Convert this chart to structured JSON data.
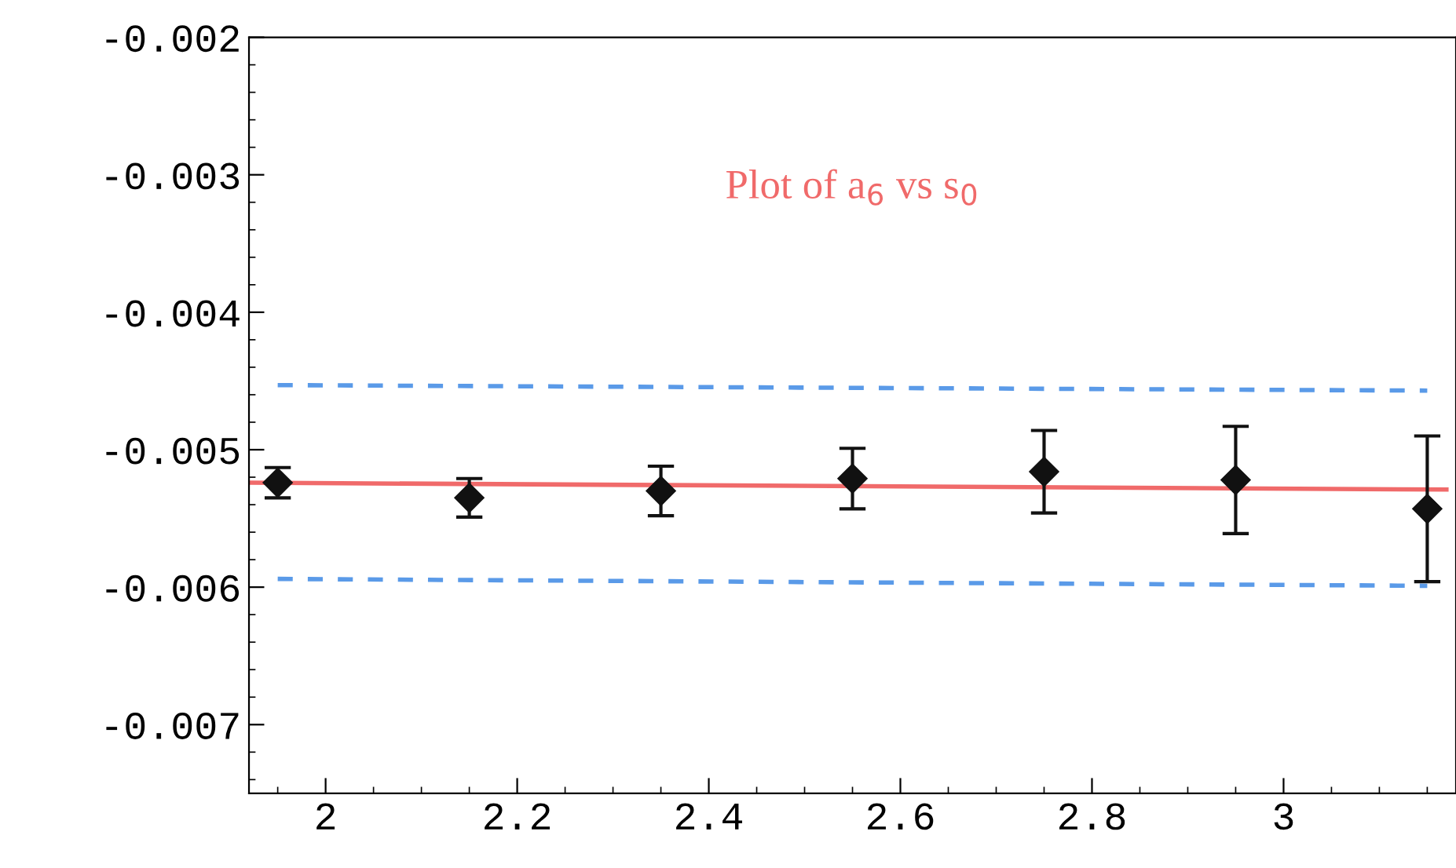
{
  "chart_data": {
    "type": "scatter",
    "title": "Plot of a$_{6}$ vs s$_{0}$",
    "xlim": [
      1.92,
      3.18
    ],
    "xticks": [
      2,
      2.2,
      2.4,
      2.6,
      2.8,
      3
    ],
    "ylim": [
      -0.0075,
      -0.002
    ],
    "yticks": [
      -0.007,
      -0.006,
      -0.005,
      -0.004,
      -0.003,
      -0.002
    ],
    "grid": false,
    "series": [
      {
        "color": "#111111",
        "marker": "diamond",
        "x": [
          1.95,
          2.15,
          2.35,
          2.55,
          2.75,
          2.95,
          3.15
        ],
        "values": [
          -0.00524,
          -0.00535,
          -0.0053,
          -0.00521,
          -0.00516,
          -0.00522,
          -0.00543
        ],
        "errors": [
          0.00011,
          0.00014,
          0.00018,
          0.00022,
          0.0003,
          0.00039,
          0.00053
        ]
      },
      {
        "type": "line",
        "color": "#f06a6a",
        "line_style": "solid",
        "x": [
          1.92,
          3.17
        ],
        "values": [
          -0.00524,
          -0.00529
        ]
      },
      {
        "type": "line",
        "color": "#5a9ae8",
        "line_style": "dashed",
        "x": [
          1.95,
          3.15
        ],
        "values": [
          -0.00453,
          -0.00457
        ]
      },
      {
        "type": "line",
        "color": "#5a9ae8",
        "line_style": "dashed",
        "x": [
          1.95,
          3.15
        ],
        "values": [
          -0.00594,
          -0.00599
        ]
      }
    ]
  }
}
